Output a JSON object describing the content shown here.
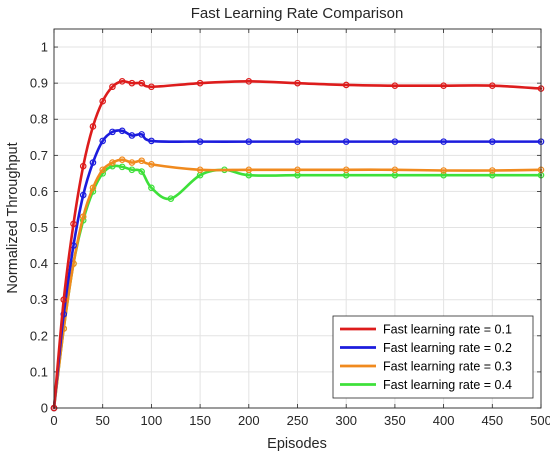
{
  "chart_data": {
    "type": "line",
    "title": "Fast Learning Rate Comparison",
    "xlabel": "Episodes",
    "ylabel": "Normalized Throughput",
    "xlim": [
      0,
      500
    ],
    "ylim": [
      0,
      1.05
    ],
    "x_ticks": [
      0,
      50,
      100,
      150,
      200,
      250,
      300,
      350,
      400,
      450,
      500
    ],
    "y_ticks": [
      0,
      0.1,
      0.2,
      0.3,
      0.4,
      0.5,
      0.6,
      0.7,
      0.8,
      0.9,
      1
    ],
    "x_tick_labels": [
      "0",
      "50",
      "100",
      "150",
      "200",
      "250",
      "300",
      "350",
      "400",
      "450",
      "500"
    ],
    "y_tick_labels": [
      "0",
      "0.1",
      "0.2",
      "0.3",
      "0.4",
      "0.5",
      "0.6",
      "0.7",
      "0.8",
      "0.9",
      "1"
    ],
    "grid": true,
    "legend_position": "bottom-right",
    "series": [
      {
        "name": "Fast learning rate = 0.1",
        "color": "#dd1c1c",
        "points": [
          [
            0,
            0.0
          ],
          [
            10,
            0.3
          ],
          [
            20,
            0.51
          ],
          [
            30,
            0.67
          ],
          [
            40,
            0.78
          ],
          [
            50,
            0.85
          ],
          [
            60,
            0.89
          ],
          [
            70,
            0.905
          ],
          [
            80,
            0.9
          ],
          [
            90,
            0.9
          ],
          [
            100,
            0.89
          ],
          [
            150,
            0.9
          ],
          [
            200,
            0.905
          ],
          [
            250,
            0.9
          ],
          [
            300,
            0.895
          ],
          [
            350,
            0.893
          ],
          [
            400,
            0.893
          ],
          [
            450,
            0.893
          ],
          [
            500,
            0.885
          ]
        ]
      },
      {
        "name": "Fast learning rate = 0.2",
        "color": "#1c1cdd",
        "points": [
          [
            0,
            0.0
          ],
          [
            10,
            0.26
          ],
          [
            20,
            0.45
          ],
          [
            30,
            0.59
          ],
          [
            40,
            0.68
          ],
          [
            50,
            0.74
          ],
          [
            60,
            0.765
          ],
          [
            70,
            0.768
          ],
          [
            80,
            0.755
          ],
          [
            90,
            0.758
          ],
          [
            100,
            0.74
          ],
          [
            150,
            0.738
          ],
          [
            200,
            0.738
          ],
          [
            250,
            0.738
          ],
          [
            300,
            0.738
          ],
          [
            350,
            0.738
          ],
          [
            400,
            0.738
          ],
          [
            450,
            0.738
          ],
          [
            500,
            0.738
          ]
        ]
      },
      {
        "name": "Fast learning rate = 0.3",
        "color": "#f08a1e",
        "points": [
          [
            0,
            0.0
          ],
          [
            10,
            0.22
          ],
          [
            20,
            0.4
          ],
          [
            30,
            0.53
          ],
          [
            40,
            0.61
          ],
          [
            50,
            0.66
          ],
          [
            60,
            0.68
          ],
          [
            70,
            0.688
          ],
          [
            80,
            0.68
          ],
          [
            90,
            0.685
          ],
          [
            100,
            0.675
          ],
          [
            150,
            0.66
          ],
          [
            200,
            0.66
          ],
          [
            250,
            0.66
          ],
          [
            300,
            0.66
          ],
          [
            350,
            0.66
          ],
          [
            400,
            0.658
          ],
          [
            450,
            0.658
          ],
          [
            500,
            0.66
          ]
        ]
      },
      {
        "name": "Fast learning rate = 0.4",
        "color": "#3ee03a",
        "points": [
          [
            0,
            0.0
          ],
          [
            10,
            0.22
          ],
          [
            20,
            0.4
          ],
          [
            30,
            0.52
          ],
          [
            40,
            0.6
          ],
          [
            50,
            0.65
          ],
          [
            60,
            0.67
          ],
          [
            70,
            0.668
          ],
          [
            80,
            0.66
          ],
          [
            90,
            0.655
          ],
          [
            100,
            0.61
          ],
          [
            120,
            0.58
          ],
          [
            150,
            0.645
          ],
          [
            175,
            0.66
          ],
          [
            200,
            0.645
          ],
          [
            250,
            0.645
          ],
          [
            300,
            0.645
          ],
          [
            350,
            0.645
          ],
          [
            400,
            0.645
          ],
          [
            450,
            0.645
          ],
          [
            500,
            0.645
          ]
        ]
      }
    ]
  }
}
